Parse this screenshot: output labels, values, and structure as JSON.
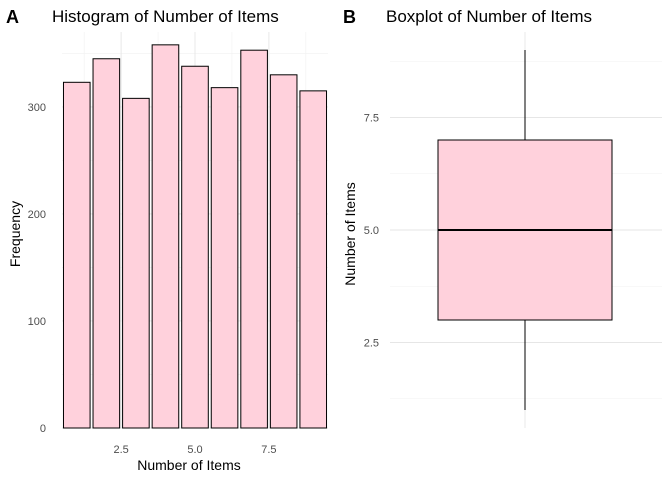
{
  "chart_data": [
    {
      "type": "bar",
      "panel_tag": "A",
      "title": "Histogram of Number of Items",
      "xlabel": "Number of Items",
      "ylabel": "Frequency",
      "x": [
        1,
        2,
        3,
        4,
        5,
        6,
        7,
        8,
        9
      ],
      "values": [
        323,
        345,
        308,
        358,
        338,
        318,
        353,
        330,
        315
      ],
      "xlim": [
        0.5,
        9.5
      ],
      "ylim": [
        0,
        370
      ],
      "xticks": [
        2.5,
        5.0,
        7.5
      ],
      "xtick_labels": [
        "2.5",
        "5.0",
        "7.5"
      ],
      "yticks": [
        0,
        100,
        200,
        300
      ],
      "ytick_labels": [
        "0",
        "100",
        "200",
        "300"
      ],
      "grid": true,
      "bar_color": "#ffd1dc",
      "edge_color": "#000000"
    },
    {
      "type": "boxplot",
      "panel_tag": "B",
      "title": "Boxplot of Number of Items",
      "xlabel": "",
      "ylabel": "Number of Items",
      "min": 1,
      "q1": 3,
      "median": 5,
      "q3": 7,
      "max": 9,
      "ylim": [
        0.6,
        9.4
      ],
      "yticks": [
        2.5,
        5.0,
        7.5
      ],
      "ytick_labels": [
        "2.5",
        "5.0",
        "7.5"
      ],
      "grid": true,
      "box_color": "#ffd1dc",
      "edge_color": "#000000"
    }
  ]
}
